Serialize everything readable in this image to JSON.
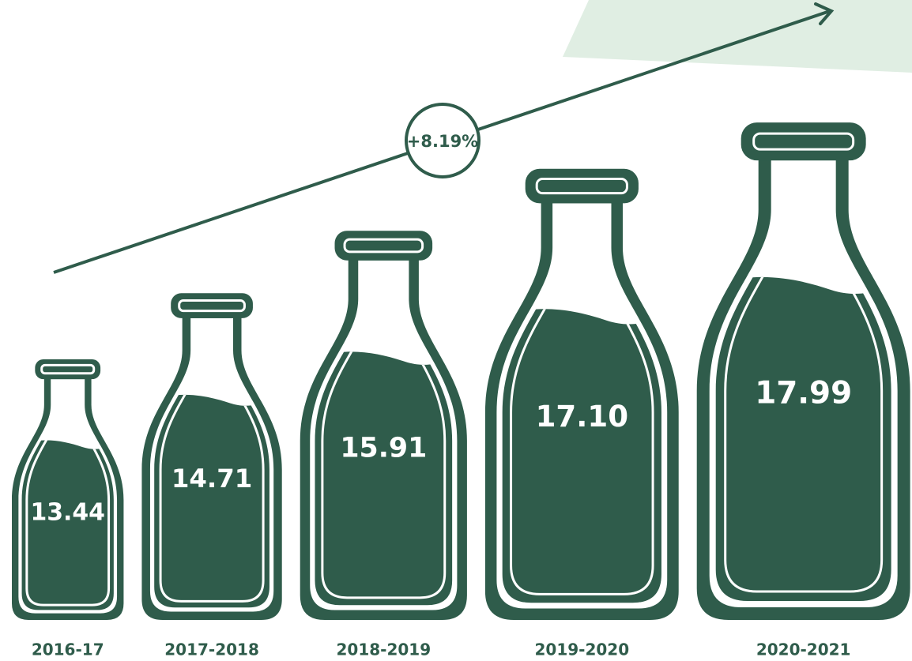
{
  "chart_data": {
    "type": "bar",
    "color": "#2f5c4b",
    "categories": [
      "2016-17",
      "2017-2018",
      "2018-2019",
      "2019-2020",
      "2020-2021"
    ],
    "values": [
      13.44,
      14.71,
      15.91,
      17.1,
      17.99
    ],
    "value_labels": [
      "13.44",
      "14.71",
      "15.91",
      "17.10",
      "17.99"
    ],
    "annotation": "+8.19%"
  }
}
